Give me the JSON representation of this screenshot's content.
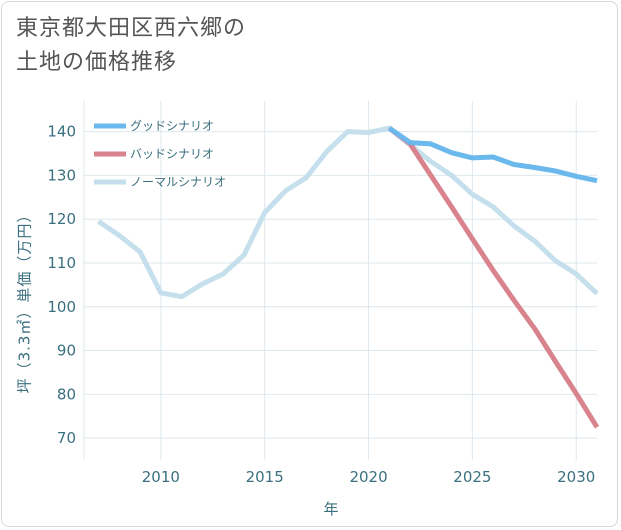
{
  "title": "東京都大田区西六郷の\n土地の価格推移",
  "chart_data": {
    "type": "line",
    "title": "東京都大田区西六郷の土地の価格推移",
    "xlabel": "年",
    "ylabel": "坪（3.3㎡）単価（万円）",
    "xlim": [
      2006.3,
      2031
    ],
    "ylim": [
      65,
      147
    ],
    "xticks": [
      2010,
      2015,
      2020,
      2025,
      2030
    ],
    "yticks": [
      70,
      80,
      90,
      100,
      110,
      120,
      130,
      140
    ],
    "grid": true,
    "legend_position": "top-left",
    "series": [
      {
        "name": "ノーマルシナリオ",
        "color": "#c5e0ec",
        "x": [
          2007,
          2008,
          2009,
          2010,
          2011,
          2012,
          2013,
          2014,
          2015,
          2016,
          2017,
          2018,
          2019,
          2020,
          2021,
          2022,
          2023,
          2024,
          2025,
          2026,
          2027,
          2028,
          2029,
          2030,
          2031
        ],
        "y": [
          119.5,
          116.3,
          112.5,
          103.2,
          102.3,
          105.2,
          107.5,
          111.8,
          121.5,
          126.5,
          129.5,
          135.5,
          140,
          139.8,
          140.8,
          137,
          133.2,
          130,
          125.7,
          122.8,
          118.5,
          115,
          110.5,
          107.5,
          103
        ]
      },
      {
        "name": "バッドシナリオ",
        "color": "#d8838e",
        "x": [
          2021,
          2022,
          2023,
          2024,
          2025,
          2026,
          2027,
          2028,
          2029,
          2030,
          2031
        ],
        "y": [
          140.8,
          137.2,
          130,
          122.8,
          115.5,
          108.3,
          101.5,
          95,
          87.5,
          80.2,
          72.5
        ]
      },
      {
        "name": "グッドシナリオ",
        "color": "#6bb8ec",
        "x": [
          2021,
          2022,
          2023,
          2024,
          2025,
          2026,
          2027,
          2028,
          2029,
          2030,
          2031
        ],
        "y": [
          140.8,
          137.5,
          137.2,
          135.2,
          134,
          134.2,
          132.5,
          131.8,
          131,
          129.8,
          128.8
        ]
      }
    ],
    "legend": [
      "グッドシナリオ",
      "バッドシナリオ",
      "ノーマルシナリオ"
    ]
  }
}
